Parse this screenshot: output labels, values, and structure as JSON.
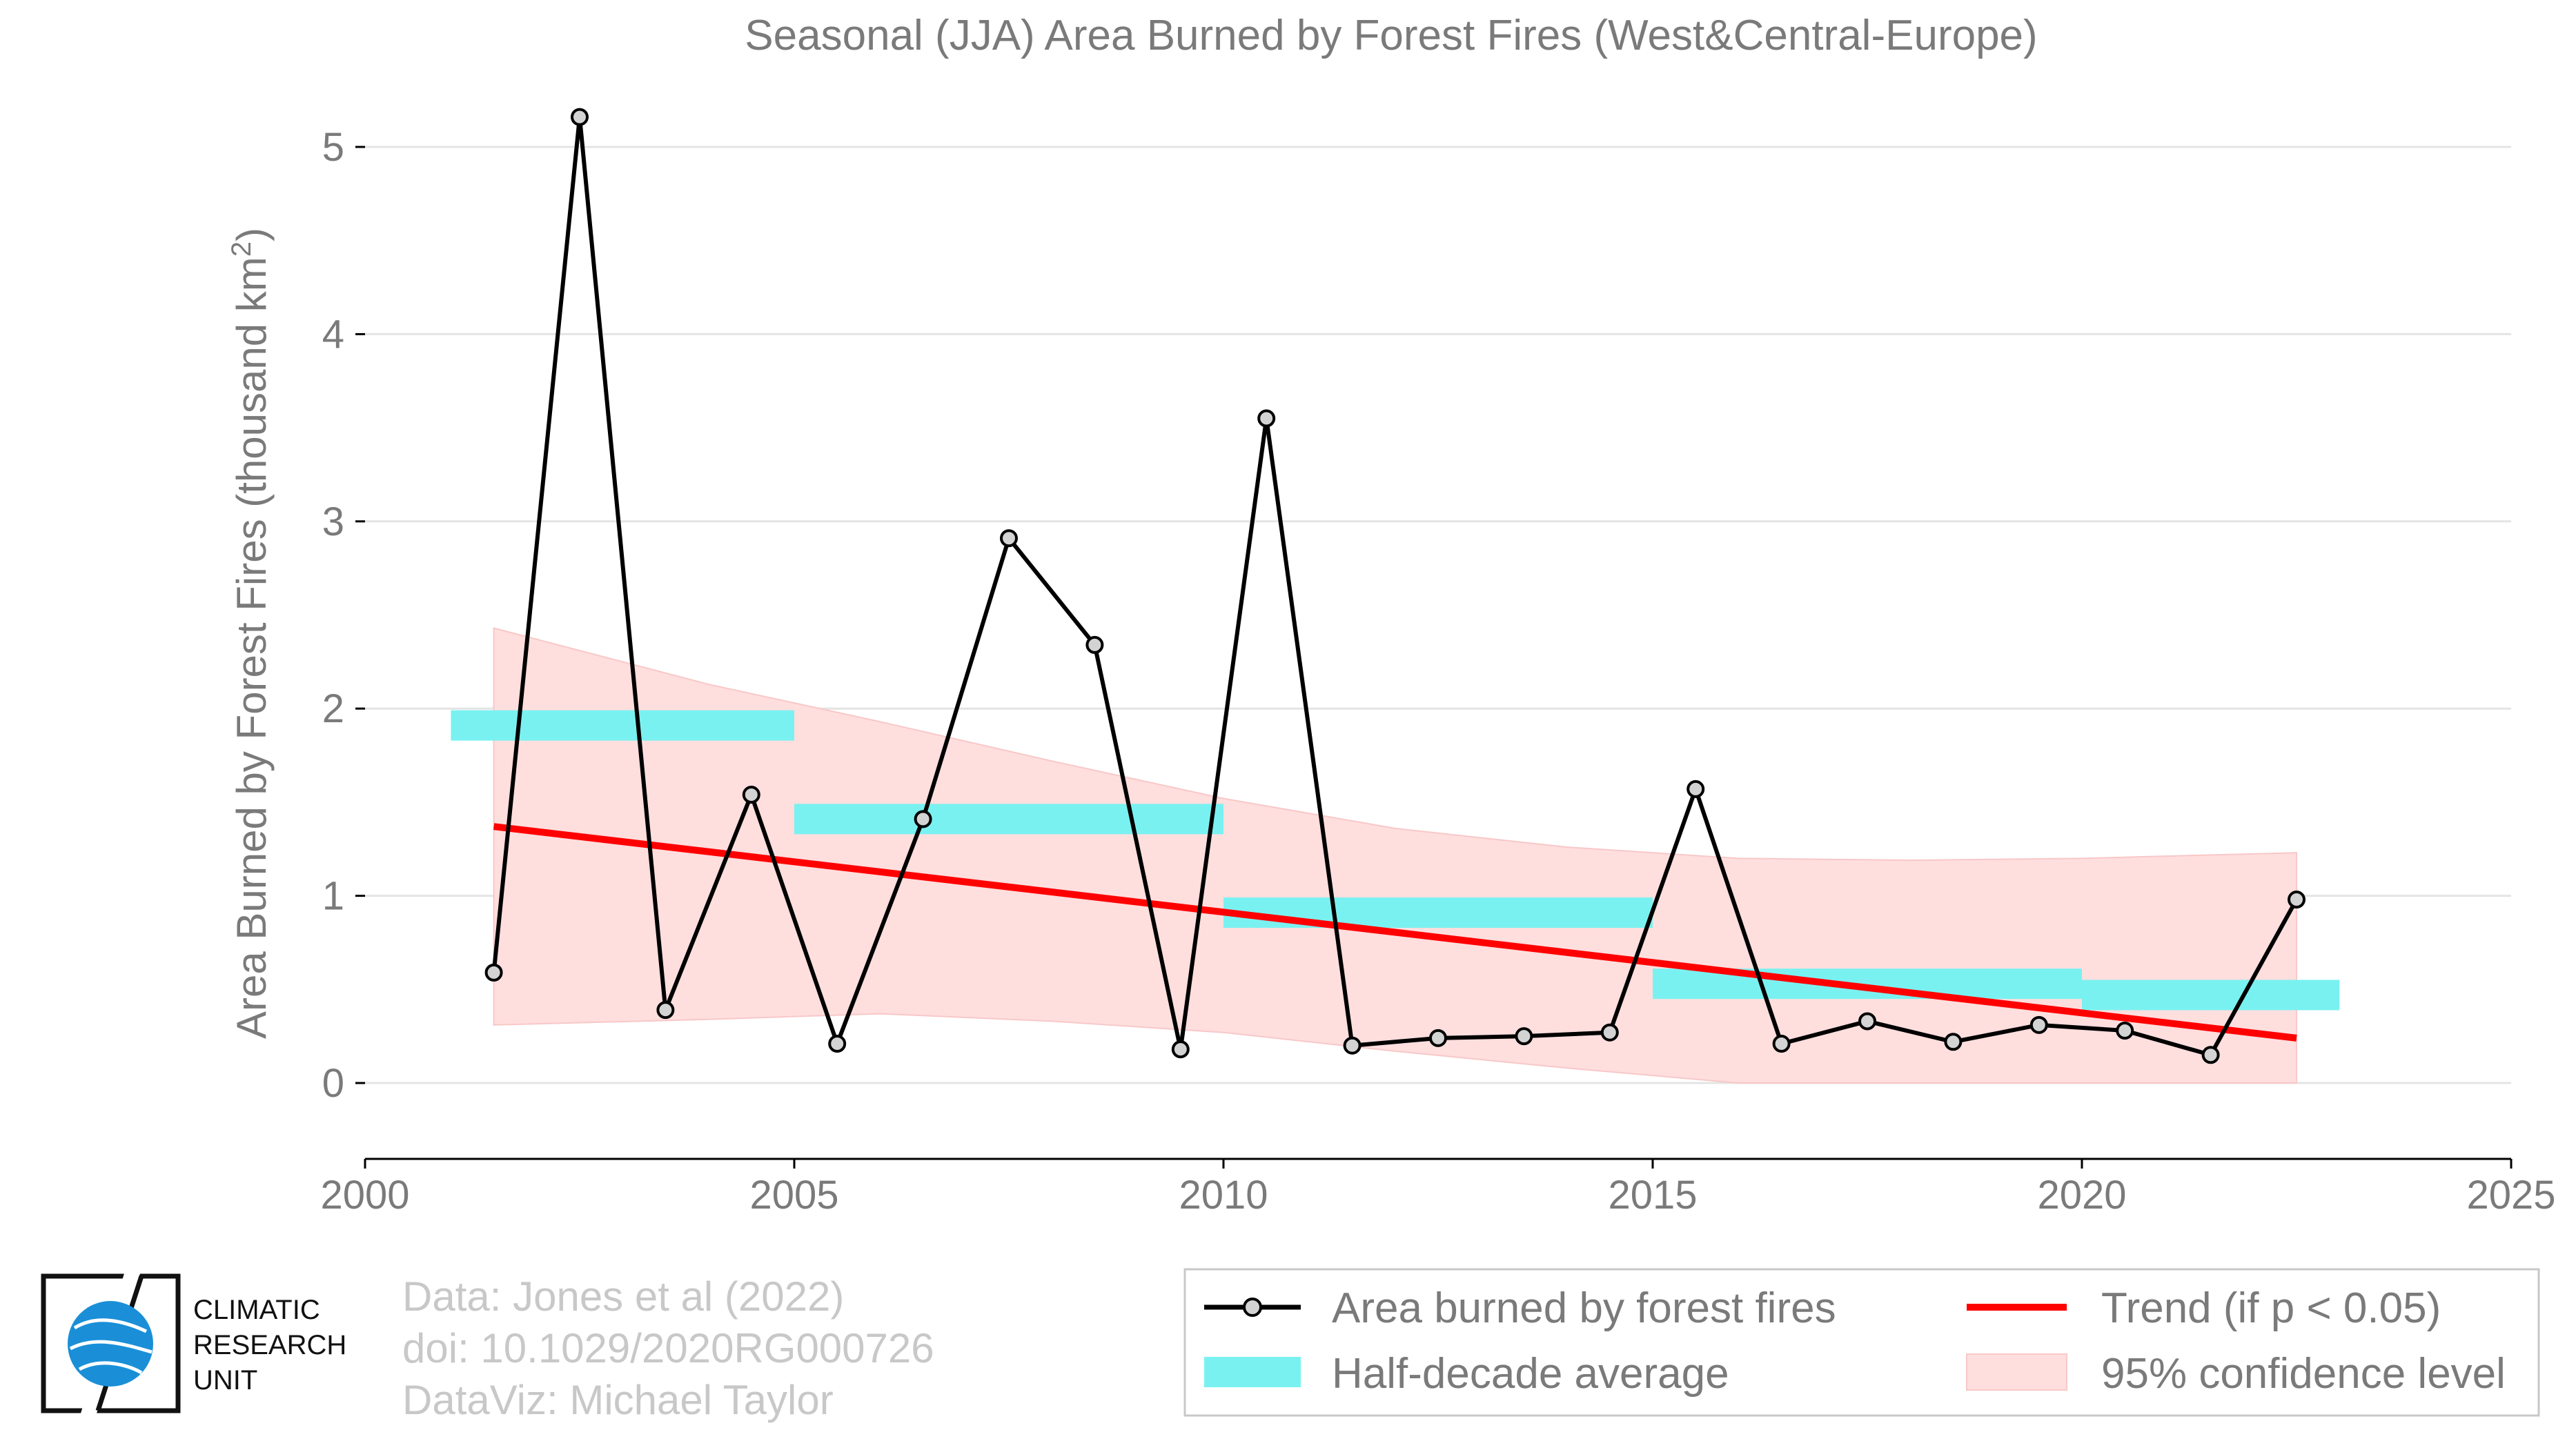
{
  "chart_data": {
    "type": "line",
    "title": "Seasonal (JJA) Area Burned by Forest Fires (West&Central-Europe)",
    "ylabel": "Area Burned by Forest Fires (thousand km²)",
    "ylabel_main": "Area Burned by Forest Fires (thousand km",
    "ylabel_sup": "2",
    "ylabel_close": ")",
    "xlim": [
      2000,
      2025
    ],
    "ylim": [
      -0.4,
      5.3
    ],
    "xticks": [
      "2000",
      "2005",
      "2010",
      "2015",
      "2020",
      "2025"
    ],
    "yticks": [
      "0",
      "1",
      "2",
      "3",
      "4",
      "5"
    ],
    "grid": "horizontal",
    "legend_position": "bottom-right",
    "series": [
      {
        "name": "Area burned by forest fires",
        "x": [
          2001.5,
          2002.5,
          2003.5,
          2004.5,
          2005.5,
          2006.5,
          2007.5,
          2008.5,
          2009.5,
          2010.5,
          2011.5,
          2012.5,
          2013.5,
          2014.5,
          2015.5,
          2016.5,
          2017.5,
          2018.5,
          2019.5,
          2020.5,
          2021.5,
          2022.5
        ],
        "values": [
          0.59,
          5.16,
          0.39,
          1.54,
          0.21,
          1.41,
          2.91,
          2.34,
          0.18,
          3.55,
          0.2,
          0.24,
          0.25,
          0.27,
          1.57,
          0.21,
          0.33,
          0.22,
          0.31,
          0.28,
          0.15,
          0.98
        ],
        "color": "#000000"
      },
      {
        "name": "Trend (if p < 0.05)",
        "x": [
          2001.5,
          2022.5
        ],
        "values": [
          1.37,
          0.24
        ],
        "color": "#ff0000"
      }
    ],
    "half_decade_average": {
      "name": "Half-decade average",
      "color": "#7af1f1",
      "segments": [
        {
          "x0": 2001,
          "x1": 2005,
          "value": 1.91
        },
        {
          "x0": 2005,
          "x1": 2010,
          "value": 1.41
        },
        {
          "x0": 2010,
          "x1": 2015,
          "value": 0.91
        },
        {
          "x0": 2015,
          "x1": 2020,
          "value": 0.53
        },
        {
          "x0": 2020,
          "x1": 2023,
          "value": 0.47
        }
      ]
    },
    "confidence_band": {
      "name": "95% confidence level",
      "color": "#ffdede",
      "x": [
        2001.5,
        2004,
        2006,
        2008,
        2010,
        2012,
        2014,
        2016,
        2018,
        2020,
        2022.5
      ],
      "upper": [
        2.43,
        2.13,
        1.93,
        1.72,
        1.52,
        1.36,
        1.26,
        1.2,
        1.19,
        1.2,
        1.23
      ],
      "lower": [
        0.31,
        0.34,
        0.37,
        0.33,
        0.27,
        0.17,
        0.08,
        0.0,
        0.0,
        0.0,
        0.0
      ]
    }
  },
  "legend": {
    "items": [
      "Area burned by forest fires",
      "Trend (if p < 0.05)",
      "Half-decade average",
      "95% confidence level"
    ]
  },
  "credits": {
    "line1": "Data: Jones et al (2022)",
    "line2": "doi: 10.1029/2020RG000726",
    "line3": "DataViz: Michael Taylor"
  },
  "logo": {
    "line1": "CLIMATIC",
    "line2": "RESEARCH",
    "line3": "UNIT",
    "color": "#1a8fd8"
  }
}
